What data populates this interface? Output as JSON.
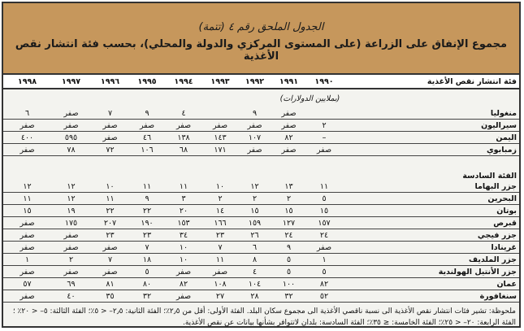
{
  "title": {
    "line1": "الجدول الملحق رقم ٤ (تتمة)",
    "line2": "مجموع الإنفاق على الزراعة (على المستوى المركزي والدولة والمحلي)، بحسب فئة انتشار نقص الأغذية"
  },
  "table": {
    "label_header": "فئة انتشار نقص الأغذية",
    "years": [
      "١٩٩٠",
      "١٩٩١",
      "١٩٩٢",
      "١٩٩٣",
      "١٩٩٤",
      "١٩٩٥",
      "١٩٩٦",
      "١٩٩٧",
      "١٩٩٨"
    ],
    "unit": "(بملايين الدولارات)",
    "group1": [
      {
        "name": "منغوليا",
        "values": [
          "",
          "صفر",
          "٩",
          "",
          "٤",
          "٩",
          "٧",
          "صفر",
          "٦"
        ]
      },
      {
        "name": "سيراليون",
        "values": [
          "٢",
          "صفر",
          "صفر",
          "صفر",
          "صفر",
          "صفر",
          "صفر",
          "صفر",
          "صفر"
        ]
      },
      {
        "name": "اليمن",
        "values": [
          "–",
          "٨٢",
          "١٠٧",
          "١٤٣",
          "١٣٨",
          "٤٦",
          "صفر",
          "٥٩٥",
          "٤٠٠"
        ]
      },
      {
        "name": "زمبابوي",
        "values": [
          "صفر",
          "صفر",
          "صفر",
          "١٧١",
          "٦٨",
          "١٠٦",
          "٧٢",
          "٧٨",
          "صفر"
        ]
      }
    ],
    "group2_label": "الفئة السادسة",
    "group2": [
      {
        "name": "جزر البهاما",
        "values": [
          "١١",
          "١٣",
          "١٢",
          "١٠",
          "١١",
          "١١",
          "١٠",
          "١٢",
          "١٢"
        ]
      },
      {
        "name": "البحرين",
        "values": [
          "٥",
          "٢",
          "٢",
          "٢",
          "٣",
          "٩",
          "١١",
          "١٢",
          "١١"
        ]
      },
      {
        "name": "بوتان",
        "values": [
          "١٥",
          "١٥",
          "١٥",
          "١٤",
          "٢٠",
          "٢٢",
          "٢٢",
          "١٩",
          "١٥"
        ]
      },
      {
        "name": "قبرص",
        "values": [
          "١٥٧",
          "١٢٧",
          "١٥٩",
          "١٦٦",
          "١٥٣",
          "١٩٠",
          "٢٠٧",
          "١٧٥",
          "صفر"
        ]
      },
      {
        "name": "جزر فيجي",
        "values": [
          "٢٤",
          "٢٤",
          "٢٦",
          "٢٣",
          "٣٤",
          "٢٣",
          "٢٣",
          "صفر",
          "صفر"
        ]
      },
      {
        "name": "غرينادا",
        "values": [
          "صفر",
          "٩",
          "٦",
          "٧",
          "١٠",
          "٧",
          "صفر",
          "صفر",
          "صفر"
        ]
      },
      {
        "name": "جزر الملديف",
        "values": [
          "١",
          "٥",
          "٨",
          "١١",
          "١٠",
          "١٨",
          "٧",
          "٢",
          "١"
        ]
      },
      {
        "name": "جزر الأنتيل الهولندية",
        "values": [
          "٥",
          "٥",
          "٤",
          "صفر",
          "صفر",
          "٥",
          "صفر",
          "صفر",
          "صفر"
        ]
      },
      {
        "name": "عمان",
        "values": [
          "٨٢",
          "١٠٠",
          "١٠٤",
          "١٠٨",
          "٨٢",
          "٨٠",
          "٨١",
          "٦٩",
          "٥٧"
        ]
      },
      {
        "name": "سنغافورة",
        "values": [
          "٥٢",
          "٣٢",
          "٢٨",
          "٢٧",
          "صفر",
          "٣٢",
          "٣٥",
          "٤٠",
          "صفر"
        ]
      }
    ]
  },
  "note": "ملحوظة: تشير فئات انتشار نقص الأغذية الى نسبة ناقصي الأغذية الى مجموع سكان البلد. الفئة الأولى: أقل من ٢٫٥٪؛ الفئة الثانية: ٢٫٥– < ٥٪؛ الفئة الثالثة: ٥– < ٢٠٪ ؛ الفئة الرابعة: ٢٠– < ٢٥٪؛ الفئة الخامسة: ≤ ٣٥٪؛ الفئة السادسة: بلدان لاتتوافر بشأنها بيانات عن نقص الأغذية."
}
